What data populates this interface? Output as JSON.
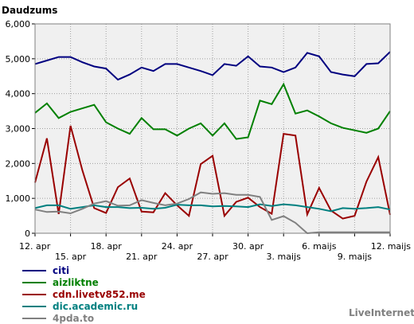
{
  "chart_data": {
    "type": "line",
    "title": "Daudzums",
    "ylim": [
      0,
      6000
    ],
    "yticks": [
      0,
      1000,
      2000,
      3000,
      4000,
      5000,
      6000
    ],
    "ytick_labels": [
      "0",
      "1,000",
      "2,000",
      "3,000",
      "4,000",
      "5,000",
      "6,000"
    ],
    "xtick_labels": [
      {
        "index": 0,
        "label": "12. apr",
        "row": 1
      },
      {
        "index": 3,
        "label": "15. apr",
        "row": 2
      },
      {
        "index": 6,
        "label": "18. apr",
        "row": 1
      },
      {
        "index": 9,
        "label": "21. apr",
        "row": 2
      },
      {
        "index": 12,
        "label": "24. apr",
        "row": 1
      },
      {
        "index": 15,
        "label": "27. apr",
        "row": 2
      },
      {
        "index": 18,
        "label": "30. apr",
        "row": 1
      },
      {
        "index": 21,
        "label": "3. maijs",
        "row": 2
      },
      {
        "index": 24,
        "label": "6. maijs",
        "row": 1
      },
      {
        "index": 27,
        "label": "9. maijs",
        "row": 2
      },
      {
        "index": 30,
        "label": "12. maijs",
        "row": 1
      }
    ],
    "grid": true,
    "legend_position": "bottom-left",
    "series": [
      {
        "name": "citi",
        "color": "#000080",
        "values": [
          4850,
          4950,
          5050,
          5050,
          4900,
          4780,
          4720,
          4400,
          4550,
          4750,
          4650,
          4850,
          4850,
          4750,
          4650,
          4530,
          4850,
          4800,
          5070,
          4780,
          4750,
          4620,
          4750,
          5170,
          5070,
          4620,
          4550,
          4500,
          4850,
          4870,
          5200
        ]
      },
      {
        "name": "aizliktne",
        "color": "#008000",
        "values": [
          3450,
          3720,
          3300,
          3480,
          3580,
          3680,
          3180,
          3000,
          2850,
          3300,
          2980,
          2980,
          2800,
          3000,
          3150,
          2800,
          3150,
          2700,
          2750,
          3800,
          3700,
          4270,
          3430,
          3520,
          3350,
          3150,
          3020,
          2950,
          2880,
          3000,
          3500
        ]
      },
      {
        "name": "cdn.livetv852.me",
        "color": "#990000",
        "values": [
          1450,
          2720,
          550,
          3080,
          1800,
          720,
          580,
          1320,
          1570,
          620,
          600,
          1150,
          800,
          500,
          1980,
          2220,
          500,
          900,
          1020,
          750,
          560,
          2850,
          2800,
          540,
          1300,
          650,
          420,
          500,
          1480,
          2180,
          530
        ]
      },
      {
        "name": "dic.academic.ru",
        "color": "#008080",
        "values": [
          720,
          800,
          800,
          700,
          750,
          800,
          750,
          750,
          720,
          730,
          700,
          730,
          820,
          800,
          800,
          770,
          780,
          770,
          750,
          830,
          780,
          830,
          800,
          750,
          700,
          630,
          720,
          700,
          720,
          750,
          680
        ]
      },
      {
        "name": "4pda.to",
        "color": "#808080",
        "values": [
          680,
          610,
          620,
          570,
          700,
          850,
          920,
          790,
          800,
          950,
          870,
          800,
          850,
          980,
          1170,
          1130,
          1150,
          1100,
          1100,
          1040,
          380,
          490,
          300,
          0,
          30,
          30,
          30,
          30,
          30,
          30,
          30
        ]
      }
    ]
  },
  "credit": "LiveInternet"
}
